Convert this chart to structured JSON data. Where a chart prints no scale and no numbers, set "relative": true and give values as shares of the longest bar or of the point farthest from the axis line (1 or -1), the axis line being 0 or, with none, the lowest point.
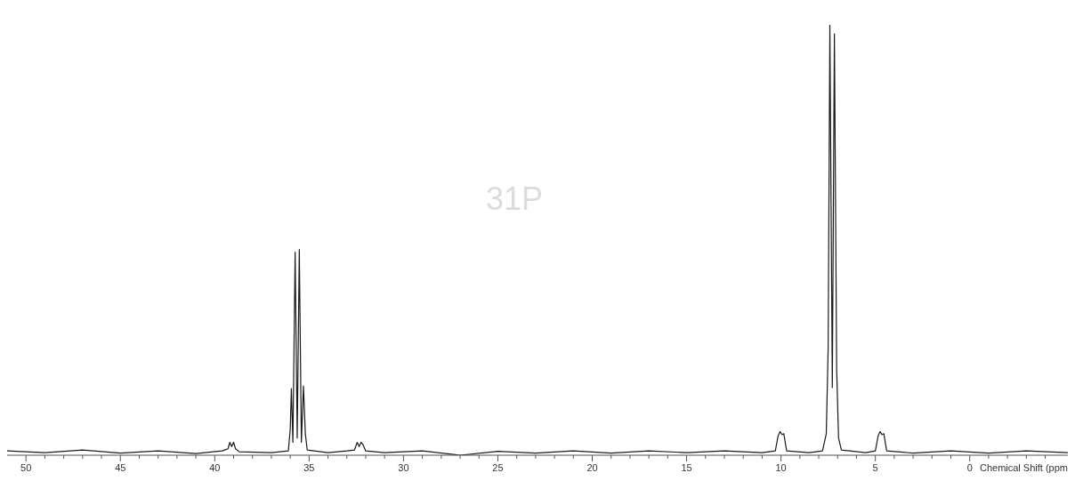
{
  "chart_data": {
    "type": "line",
    "relative": true,
    "xlabel": "Chemical Shift (ppm",
    "annotations": [
      "31P"
    ],
    "marker": "none",
    "line_style": "solid",
    "xlim": [
      51,
      -5.2
    ],
    "xticks": [
      50,
      {
        "value": 49,
        "label": null
      },
      {
        "value": 48,
        "label": null
      },
      {
        "value": 47,
        "label": null
      },
      {
        "value": 46,
        "label": null
      },
      45,
      {
        "value": 44,
        "label": null
      },
      {
        "value": 43,
        "label": null
      },
      {
        "value": 42,
        "label": null
      },
      {
        "value": 41,
        "label": null
      },
      40,
      {
        "value": 39,
        "label": null
      },
      {
        "value": 38,
        "label": null
      },
      {
        "value": 37,
        "label": null
      },
      {
        "value": 36,
        "label": null
      },
      35,
      {
        "value": 34,
        "label": null
      },
      {
        "value": 33,
        "label": null
      },
      {
        "value": 32,
        "label": null
      },
      {
        "value": 31,
        "label": null
      },
      30,
      {
        "value": 29,
        "label": null
      },
      {
        "value": 28,
        "label": null
      },
      {
        "value": 27,
        "label": null
      },
      {
        "value": 26,
        "label": null
      },
      25,
      {
        "value": 24,
        "label": null
      },
      {
        "value": 23,
        "label": null
      },
      {
        "value": 22,
        "label": null
      },
      {
        "value": 21,
        "label": null
      },
      20,
      {
        "value": 19,
        "label": null
      },
      {
        "value": 18,
        "label": null
      },
      {
        "value": 17,
        "label": null
      },
      {
        "value": 16,
        "label": null
      },
      15,
      {
        "value": 14,
        "label": null
      },
      {
        "value": 13,
        "label": null
      },
      {
        "value": 12,
        "label": null
      },
      {
        "value": 11,
        "label": null
      },
      10,
      {
        "value": 9,
        "label": null
      },
      {
        "value": 8,
        "label": null
      },
      {
        "value": 7,
        "label": null
      },
      {
        "value": 6,
        "label": null
      },
      5,
      {
        "value": 4,
        "label": null
      },
      {
        "value": 3,
        "label": null
      },
      {
        "value": 2,
        "label": null
      },
      {
        "value": 1,
        "label": null
      },
      0,
      {
        "value": -1,
        "label": null
      },
      {
        "value": -2,
        "label": null
      },
      {
        "value": -3,
        "label": null
      },
      {
        "value": -4,
        "label": null
      }
    ],
    "series": [
      {
        "color": "#1a1a1a",
        "x": [
          51,
          49,
          47,
          45,
          43,
          41,
          39.6,
          39.3,
          39.2,
          39.1,
          39.0,
          38.9,
          38.7,
          37,
          36.1,
          36.0,
          35.94,
          35.86,
          35.74,
          35.63,
          35.52,
          35.41,
          35.3,
          35.2,
          35.1,
          34,
          33,
          32.6,
          32.45,
          32.35,
          32.25,
          32.15,
          32.0,
          31,
          29,
          27,
          25,
          23,
          21,
          19,
          17,
          15,
          13,
          11,
          10.3,
          10.15,
          10.05,
          9.95,
          9.85,
          9.7,
          8.5,
          7.8,
          7.6,
          7.5,
          7.41,
          7.28,
          7.17,
          7.05,
          6.95,
          6.8,
          5.5,
          5.0,
          4.85,
          4.75,
          4.65,
          4.55,
          4.4,
          3,
          1,
          -1,
          -3,
          -5.2
        ],
        "values": [
          0.01,
          0.006,
          0.012,
          0.005,
          0.01,
          0.004,
          0.01,
          0.015,
          0.03,
          0.02,
          0.03,
          0.015,
          0.008,
          0.006,
          0.01,
          0.06,
          0.155,
          0.03,
          0.472,
          0.04,
          0.478,
          0.03,
          0.161,
          0.05,
          0.012,
          0.006,
          0.01,
          0.012,
          0.03,
          0.02,
          0.03,
          0.025,
          0.01,
          0.006,
          0.01,
          0,
          0.009,
          0.005,
          0.01,
          0.005,
          0.01,
          0.006,
          0.01,
          0.006,
          0.01,
          0.045,
          0.055,
          0.048,
          0.05,
          0.01,
          0.006,
          0.01,
          0.05,
          0.25,
          1,
          0.157,
          0.979,
          0.2,
          0.04,
          0.012,
          0.006,
          0.01,
          0.045,
          0.055,
          0.048,
          0.05,
          0.01,
          0.005,
          0.01,
          0.005,
          0.01,
          0.006
        ]
      }
    ]
  }
}
